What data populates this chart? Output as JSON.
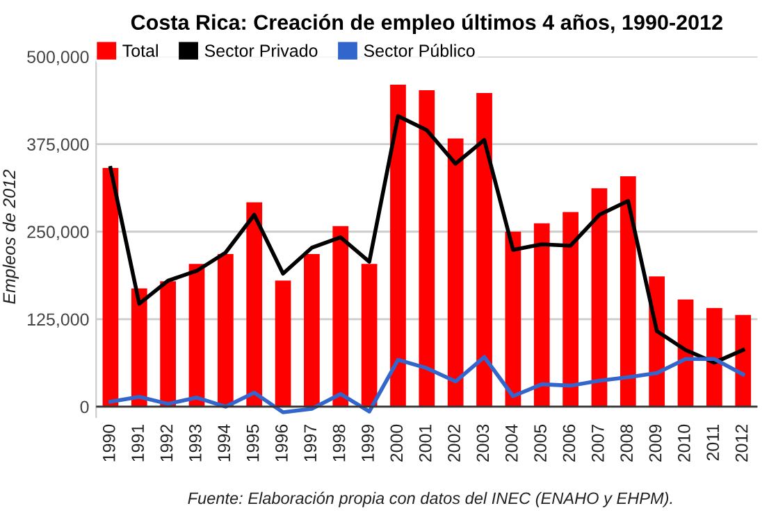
{
  "chart_data": {
    "type": "bar",
    "title": "Costa Rica: Creación de empleo últimos 4 años, 1990-2012",
    "ylabel": "Empleos de 2012",
    "categories": [
      "1990",
      "1991",
      "1992",
      "1993",
      "1994",
      "1995",
      "1996",
      "1997",
      "1998",
      "1999",
      "2000",
      "2001",
      "2002",
      "2003",
      "2004",
      "2005",
      "2006",
      "2007",
      "2008",
      "2009",
      "2010",
      "2011",
      "2012"
    ],
    "series": [
      {
        "name": "Total",
        "color": "#ff0000",
        "values": [
          341000,
          169000,
          179000,
          204000,
          218000,
          292000,
          180000,
          218000,
          258000,
          204000,
          460000,
          452000,
          383000,
          448000,
          250000,
          262000,
          278000,
          312000,
          329000,
          186000,
          153000,
          141000,
          131000
        ]
      },
      {
        "name": "Sector Privado",
        "type": "line",
        "color": "#000000",
        "values": [
          341000,
          147000,
          180000,
          194000,
          220000,
          274000,
          190000,
          227000,
          242000,
          207000,
          415000,
          395000,
          347000,
          381000,
          224000,
          232000,
          230000,
          274000,
          294000,
          108000,
          81000,
          63000,
          81000
        ]
      },
      {
        "name": "Sector Público",
        "type": "line",
        "color": "#3366cc",
        "values": [
          7000,
          14000,
          4000,
          13000,
          0,
          20000,
          -8000,
          -3000,
          18000,
          -7000,
          67000,
          55000,
          36000,
          71000,
          15000,
          32000,
          30000,
          37000,
          42000,
          48000,
          68000,
          68000,
          46000
        ]
      }
    ],
    "ylim": [
      -15000,
      500000
    ],
    "yticks": [
      {
        "value": 0,
        "label": "0"
      },
      {
        "value": 125000,
        "label": "125,000"
      },
      {
        "value": 250000,
        "label": "250,000"
      },
      {
        "value": 375000,
        "label": "375,000"
      },
      {
        "value": 500000,
        "label": "500,000"
      }
    ],
    "grid": "y",
    "legend": "top left",
    "marker": "none",
    "line_style": "solid",
    "annotations": [
      "Fuente: Elaboración propia con datos del INEC (ENAHO y EHPM)."
    ]
  }
}
